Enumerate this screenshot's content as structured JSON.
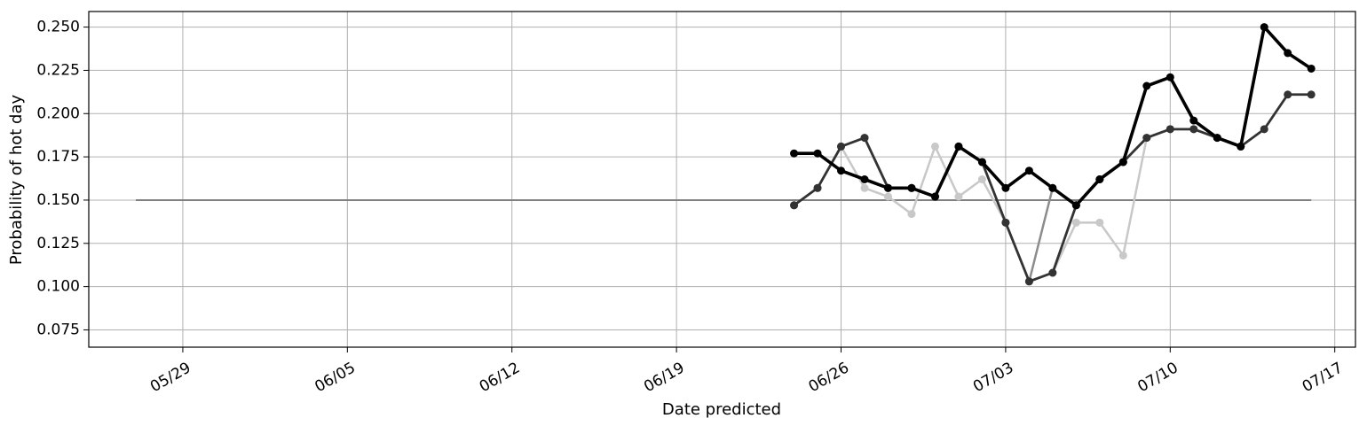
{
  "chart_data": {
    "type": "line",
    "title": "",
    "xlabel": "Date predicted",
    "ylabel": "Probability of hot day",
    "x_start": "05/25",
    "xlim": [
      "05/25",
      "07/17"
    ],
    "ylim": [
      0.065,
      0.259
    ],
    "x_ticks": [
      "05/29",
      "06/05",
      "06/12",
      "06/19",
      "06/26",
      "07/03",
      "07/10",
      "07/17"
    ],
    "y_ticks": [
      "0.075",
      "0.100",
      "0.125",
      "0.150",
      "0.175",
      "0.200",
      "0.225",
      "0.250"
    ],
    "grid": true,
    "legend": "none",
    "baseline": {
      "from": "05/27",
      "to": "07/16",
      "value": 0.15,
      "color": "#808080"
    },
    "series": [
      {
        "color": "#c8c8c8",
        "x": [
          "06/24",
          "06/25",
          "06/26",
          "06/27",
          "06/28",
          "06/29",
          "06/30",
          "07/01",
          "07/02",
          "07/03",
          "07/04",
          "07/05",
          "07/06",
          "07/07",
          "07/08",
          "07/09"
        ],
        "values": [
          0.147,
          0.157,
          0.181,
          0.157,
          0.152,
          0.142,
          0.181,
          0.152,
          0.162,
          0.137,
          0.103,
          0.108,
          0.137,
          0.137,
          0.118,
          0.186
        ]
      },
      {
        "color": "#8c8c8c",
        "x": [
          "06/24",
          "06/25",
          "06/26",
          "06/27",
          "06/28",
          "06/29",
          "06/30",
          "07/01",
          "07/02",
          "07/03",
          "07/04",
          "07/05",
          "07/06",
          "07/07",
          "07/08",
          "07/09",
          "07/10",
          "07/11",
          "07/12",
          "07/13"
        ],
        "values": [
          0.147,
          0.157,
          0.181,
          0.186,
          0.157,
          0.157,
          0.152,
          0.181,
          0.172,
          0.137,
          0.103,
          0.157,
          0.147,
          0.162,
          0.172,
          0.186,
          0.191,
          0.191,
          0.186,
          0.181
        ]
      },
      {
        "color": "#333333",
        "x": [
          "06/24",
          "06/25",
          "06/26",
          "06/27",
          "06/28",
          "06/29",
          "06/30",
          "07/01",
          "07/02",
          "07/03",
          "07/04",
          "07/05",
          "07/06",
          "07/07",
          "07/08",
          "07/09",
          "07/10",
          "07/11",
          "07/12",
          "07/13",
          "07/14",
          "07/15",
          "07/16"
        ],
        "values": [
          0.147,
          0.157,
          0.181,
          0.186,
          0.157,
          0.157,
          0.152,
          0.181,
          0.172,
          0.137,
          0.103,
          0.108,
          0.147,
          0.162,
          0.172,
          0.186,
          0.191,
          0.191,
          0.186,
          0.181,
          0.191,
          0.211,
          0.211
        ]
      },
      {
        "color": "#000000",
        "x": [
          "06/24",
          "06/25",
          "06/26",
          "06/27",
          "06/28",
          "06/29",
          "06/30",
          "07/01",
          "07/02",
          "07/03",
          "07/04",
          "07/05",
          "07/06",
          "07/07",
          "07/08",
          "07/09",
          "07/10",
          "07/11",
          "07/12",
          "07/13",
          "07/14",
          "07/15",
          "07/16"
        ],
        "values": [
          0.177,
          0.177,
          0.167,
          0.162,
          0.157,
          0.157,
          0.152,
          0.181,
          0.172,
          0.157,
          0.167,
          0.157,
          0.147,
          0.162,
          0.172,
          0.216,
          0.221,
          0.196,
          0.186,
          0.181,
          0.25,
          0.235,
          0.226
        ]
      }
    ]
  }
}
